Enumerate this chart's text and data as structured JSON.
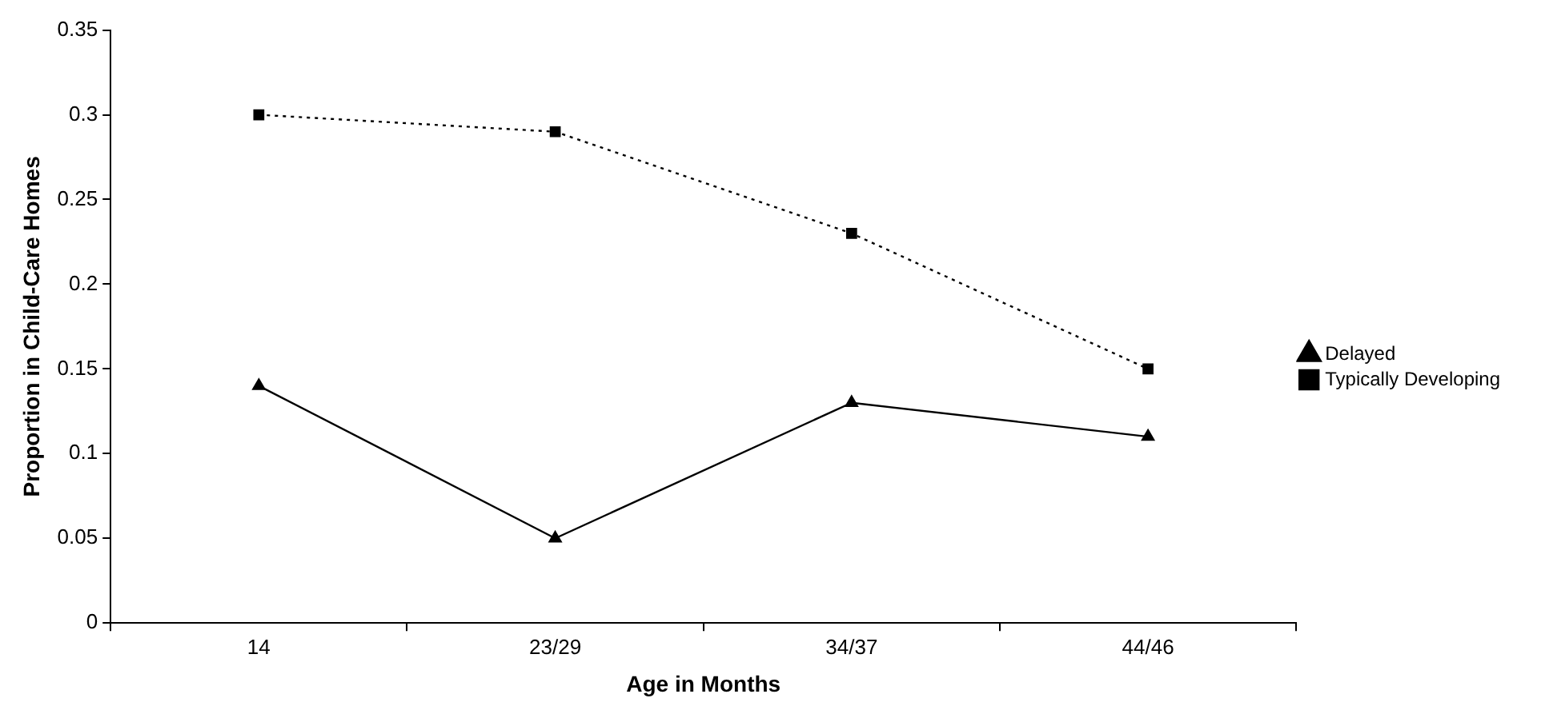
{
  "chart_data": {
    "type": "line",
    "xlabel": "Age in Months",
    "ylabel": "Proportion in Child-Care Homes",
    "categories": [
      "14",
      "23/29",
      "34/37",
      "44/46"
    ],
    "series": [
      {
        "name": "Delayed",
        "color": "#000000",
        "values": [
          0.14,
          0.05,
          0.13,
          0.11
        ],
        "marker": "triangle",
        "line_style": "solid"
      },
      {
        "name": "Typically Developing",
        "color": "#000000",
        "values": [
          0.3,
          0.29,
          0.23,
          0.15
        ],
        "marker": "square",
        "line_style": "dotted"
      }
    ],
    "ylim": [
      0,
      0.35
    ],
    "yticks": [
      0,
      0.05,
      0.1,
      0.15,
      0.2,
      0.25,
      0.3,
      0.35
    ],
    "grid": false,
    "legend": "right"
  }
}
